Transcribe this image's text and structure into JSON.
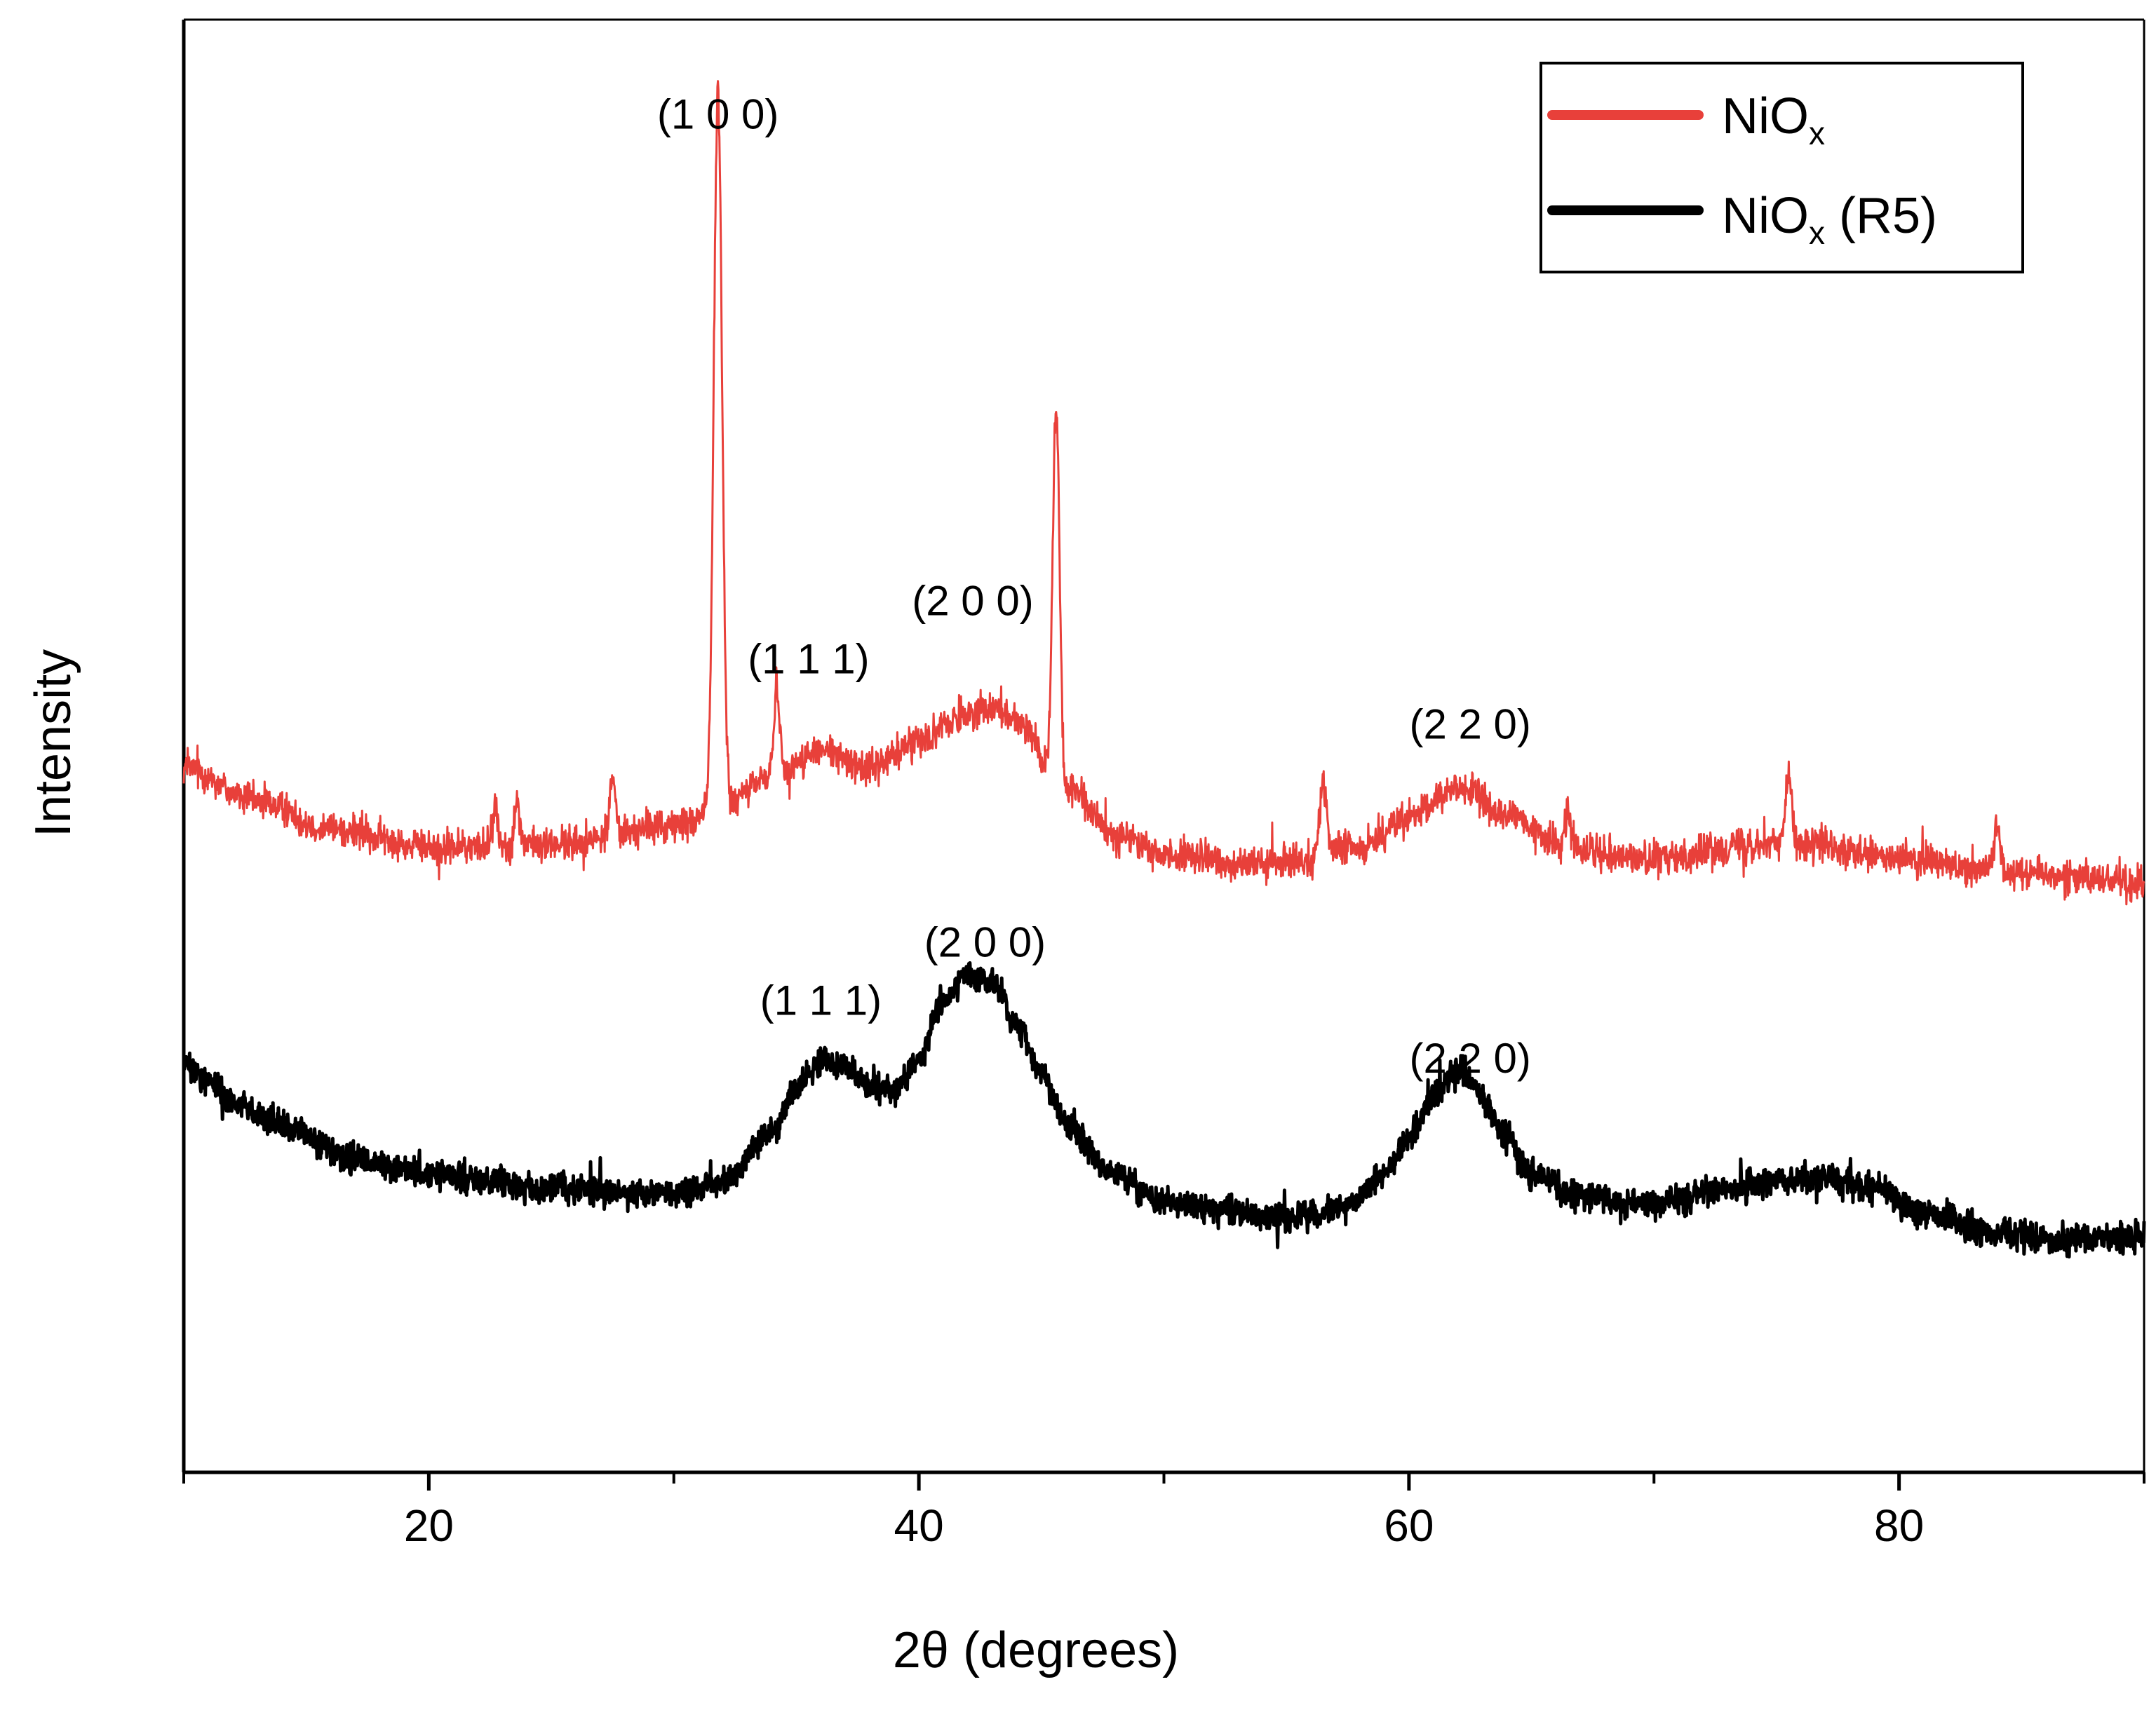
{
  "chart_data": {
    "type": "line",
    "title": "",
    "xlabel": "2θ (degrees)",
    "ylabel": "Intensity",
    "xlim": [
      10,
      90
    ],
    "ylim": [
      0,
      100
    ],
    "grid": false,
    "legend_position": "top-right",
    "x_major_ticks": [
      20,
      40,
      60,
      80
    ],
    "x_minor_ticks": [
      10,
      30,
      50,
      70,
      90
    ],
    "x_tick_labels": [
      "20",
      "40",
      "60",
      "80"
    ],
    "series": [
      {
        "name": "NiOx",
        "legend_main": "NiO",
        "legend_sub": "x",
        "legend_suffix": "",
        "color": "#e8403a",
        "baseline": [
          [
            10,
            48.5
          ],
          [
            13,
            46.2
          ],
          [
            16,
            44.3
          ],
          [
            20,
            43.0
          ],
          [
            25,
            43.2
          ],
          [
            30,
            44.5
          ],
          [
            32,
            45.8
          ],
          [
            34,
            48.0
          ],
          [
            36,
            49.6
          ],
          [
            38,
            48.5
          ],
          [
            40,
            50.5
          ],
          [
            42,
            52.2
          ],
          [
            43,
            52.8
          ],
          [
            44,
            51.8
          ],
          [
            46,
            47.0
          ],
          [
            48,
            44.0
          ],
          [
            50,
            42.5
          ],
          [
            54,
            41.8
          ],
          [
            58,
            43.0
          ],
          [
            60,
            45.0
          ],
          [
            62,
            47.2
          ],
          [
            64,
            45.2
          ],
          [
            66,
            43.3
          ],
          [
            70,
            42.2
          ],
          [
            74,
            43.3
          ],
          [
            76,
            43.2
          ],
          [
            80,
            42.2
          ],
          [
            84,
            41.5
          ],
          [
            88,
            40.9
          ],
          [
            90,
            40.5
          ]
        ],
        "peaks": [
          [
            31.8,
            49.0,
            0.17
          ],
          [
            34.2,
            6.0,
            0.12
          ],
          [
            45.6,
            26.0,
            0.14
          ],
          [
            56.5,
            5.0,
            0.13
          ],
          [
            75.5,
            5.0,
            0.13
          ],
          [
            27.5,
            4.0,
            0.12
          ],
          [
            22.7,
            2.5,
            0.12
          ],
          [
            23.6,
            2.8,
            0.12
          ],
          [
            84.0,
            3.0,
            0.12
          ],
          [
            66.5,
            2.0,
            0.12
          ]
        ],
        "noise": 0.9
      },
      {
        "name": "NiOx (R5)",
        "legend_main": "NiO",
        "legend_sub": "x",
        "legend_suffix": " (R5)",
        "color": "#000000",
        "baseline": [
          [
            10,
            28.0
          ],
          [
            11,
            27.0
          ],
          [
            12,
            25.5
          ],
          [
            14,
            23.8
          ],
          [
            17,
            21.5
          ],
          [
            20,
            20.5
          ],
          [
            25,
            19.5
          ],
          [
            30,
            19.2
          ],
          [
            32,
            20.0
          ],
          [
            34,
            23.5
          ],
          [
            35,
            26.5
          ],
          [
            36,
            28.2
          ],
          [
            37,
            28.0
          ],
          [
            38,
            26.5
          ],
          [
            39,
            26.2
          ],
          [
            40,
            28.5
          ],
          [
            41,
            32.5
          ],
          [
            42,
            34.2
          ],
          [
            43,
            33.7
          ],
          [
            44,
            31.0
          ],
          [
            45,
            27.5
          ],
          [
            46,
            24.0
          ],
          [
            48,
            20.5
          ],
          [
            50,
            18.5
          ],
          [
            55,
            17.5
          ],
          [
            57,
            18.0
          ],
          [
            59,
            20.5
          ],
          [
            60,
            23.0
          ],
          [
            61,
            25.8
          ],
          [
            62,
            27.8
          ],
          [
            63,
            25.8
          ],
          [
            64,
            23.0
          ],
          [
            65,
            20.5
          ],
          [
            67,
            19.0
          ],
          [
            70,
            18.5
          ],
          [
            73,
            19.5
          ],
          [
            75,
            20.0
          ],
          [
            77,
            20.3
          ],
          [
            79,
            19.5
          ],
          [
            81,
            17.8
          ],
          [
            84,
            16.5
          ],
          [
            87,
            16.0
          ],
          [
            90,
            16.2
          ]
        ],
        "peaks": [],
        "noise": 0.75
      }
    ],
    "annotations": [
      {
        "text": "(1 0 0)",
        "x": 31.8,
        "y": 92.5
      },
      {
        "text": "(1 1 1)",
        "x": 35.5,
        "y": 55.0
      },
      {
        "text": "(2 0 0)",
        "x": 42.2,
        "y": 59.0
      },
      {
        "text": "(2 2 0)",
        "x": 62.5,
        "y": 50.5
      },
      {
        "text": "(1 1 1)",
        "x": 36.0,
        "y": 31.5
      },
      {
        "text": "(2 0 0)",
        "x": 42.7,
        "y": 35.5
      },
      {
        "text": "(2 2 0)",
        "x": 62.5,
        "y": 27.5
      }
    ]
  }
}
